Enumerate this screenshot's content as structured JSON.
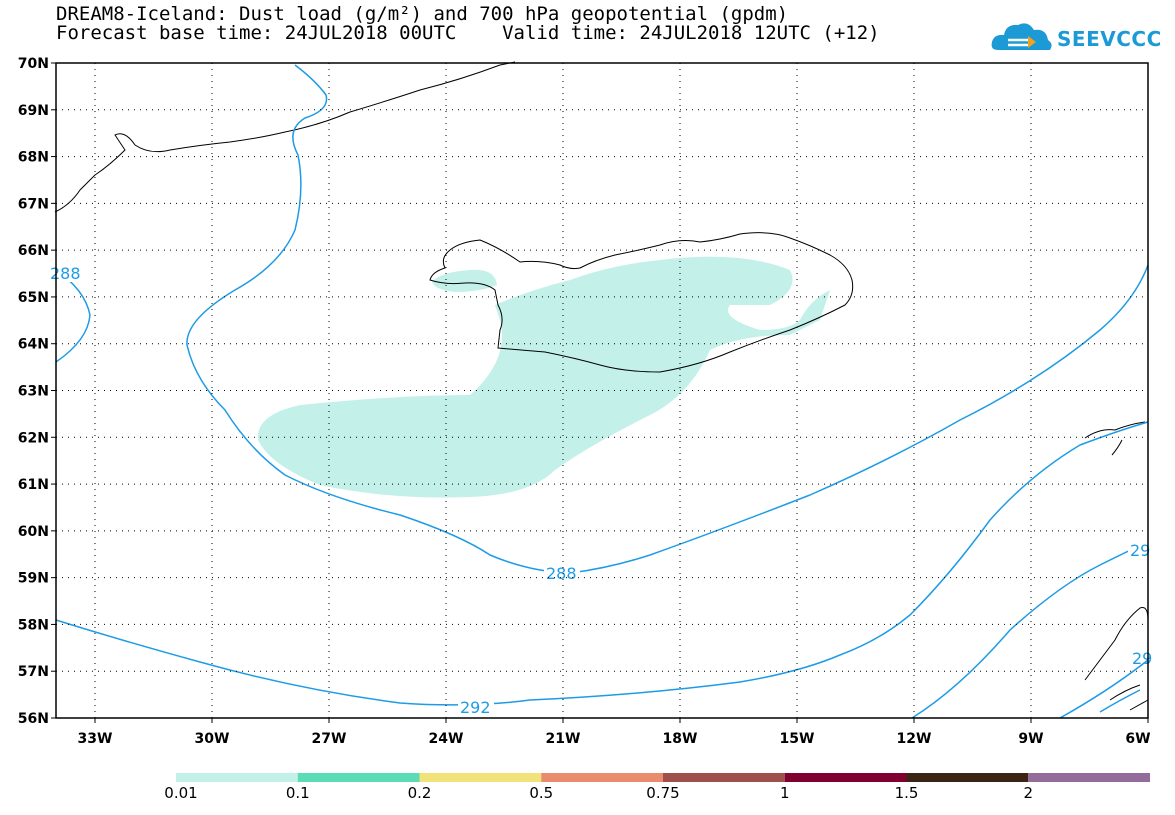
{
  "title": {
    "line1": "DREAM8-Iceland: Dust load (g/m²) and 700 hPa geopotential (gpdm)",
    "line2": "Forecast base time: 24JUL2018 00UTC    Valid time: 24JUL2018 12UTC (+12)"
  },
  "logo": {
    "text": "SEEVCCC",
    "icon": "cloud-logo-icon"
  },
  "axes": {
    "lat_labels": [
      "70N",
      "69N",
      "68N",
      "67N",
      "66N",
      "65N",
      "64N",
      "63N",
      "62N",
      "61N",
      "60N",
      "59N",
      "58N",
      "57N",
      "56N"
    ],
    "lon_labels": [
      "33W",
      "30W",
      "27W",
      "24W",
      "21W",
      "18W",
      "15W",
      "12W",
      "9W",
      "6W"
    ]
  },
  "contour_labels": [
    "288",
    "292",
    "288",
    "29",
    "29"
  ],
  "legend": {
    "labels": [
      "0.01",
      "0.1",
      "0.2",
      "0.5",
      "0.75",
      "1",
      "1.5",
      "2"
    ],
    "colors": [
      "#c4f0ea",
      "#5cdcb4",
      "#f2e27a",
      "#e88c6c",
      "#a0504a",
      "#800030",
      "#3c2414",
      "#946c9c"
    ]
  },
  "colors": {
    "contour": "#1e9be6",
    "dust_fill": "#c4f0ea",
    "coast": "#000000"
  }
}
